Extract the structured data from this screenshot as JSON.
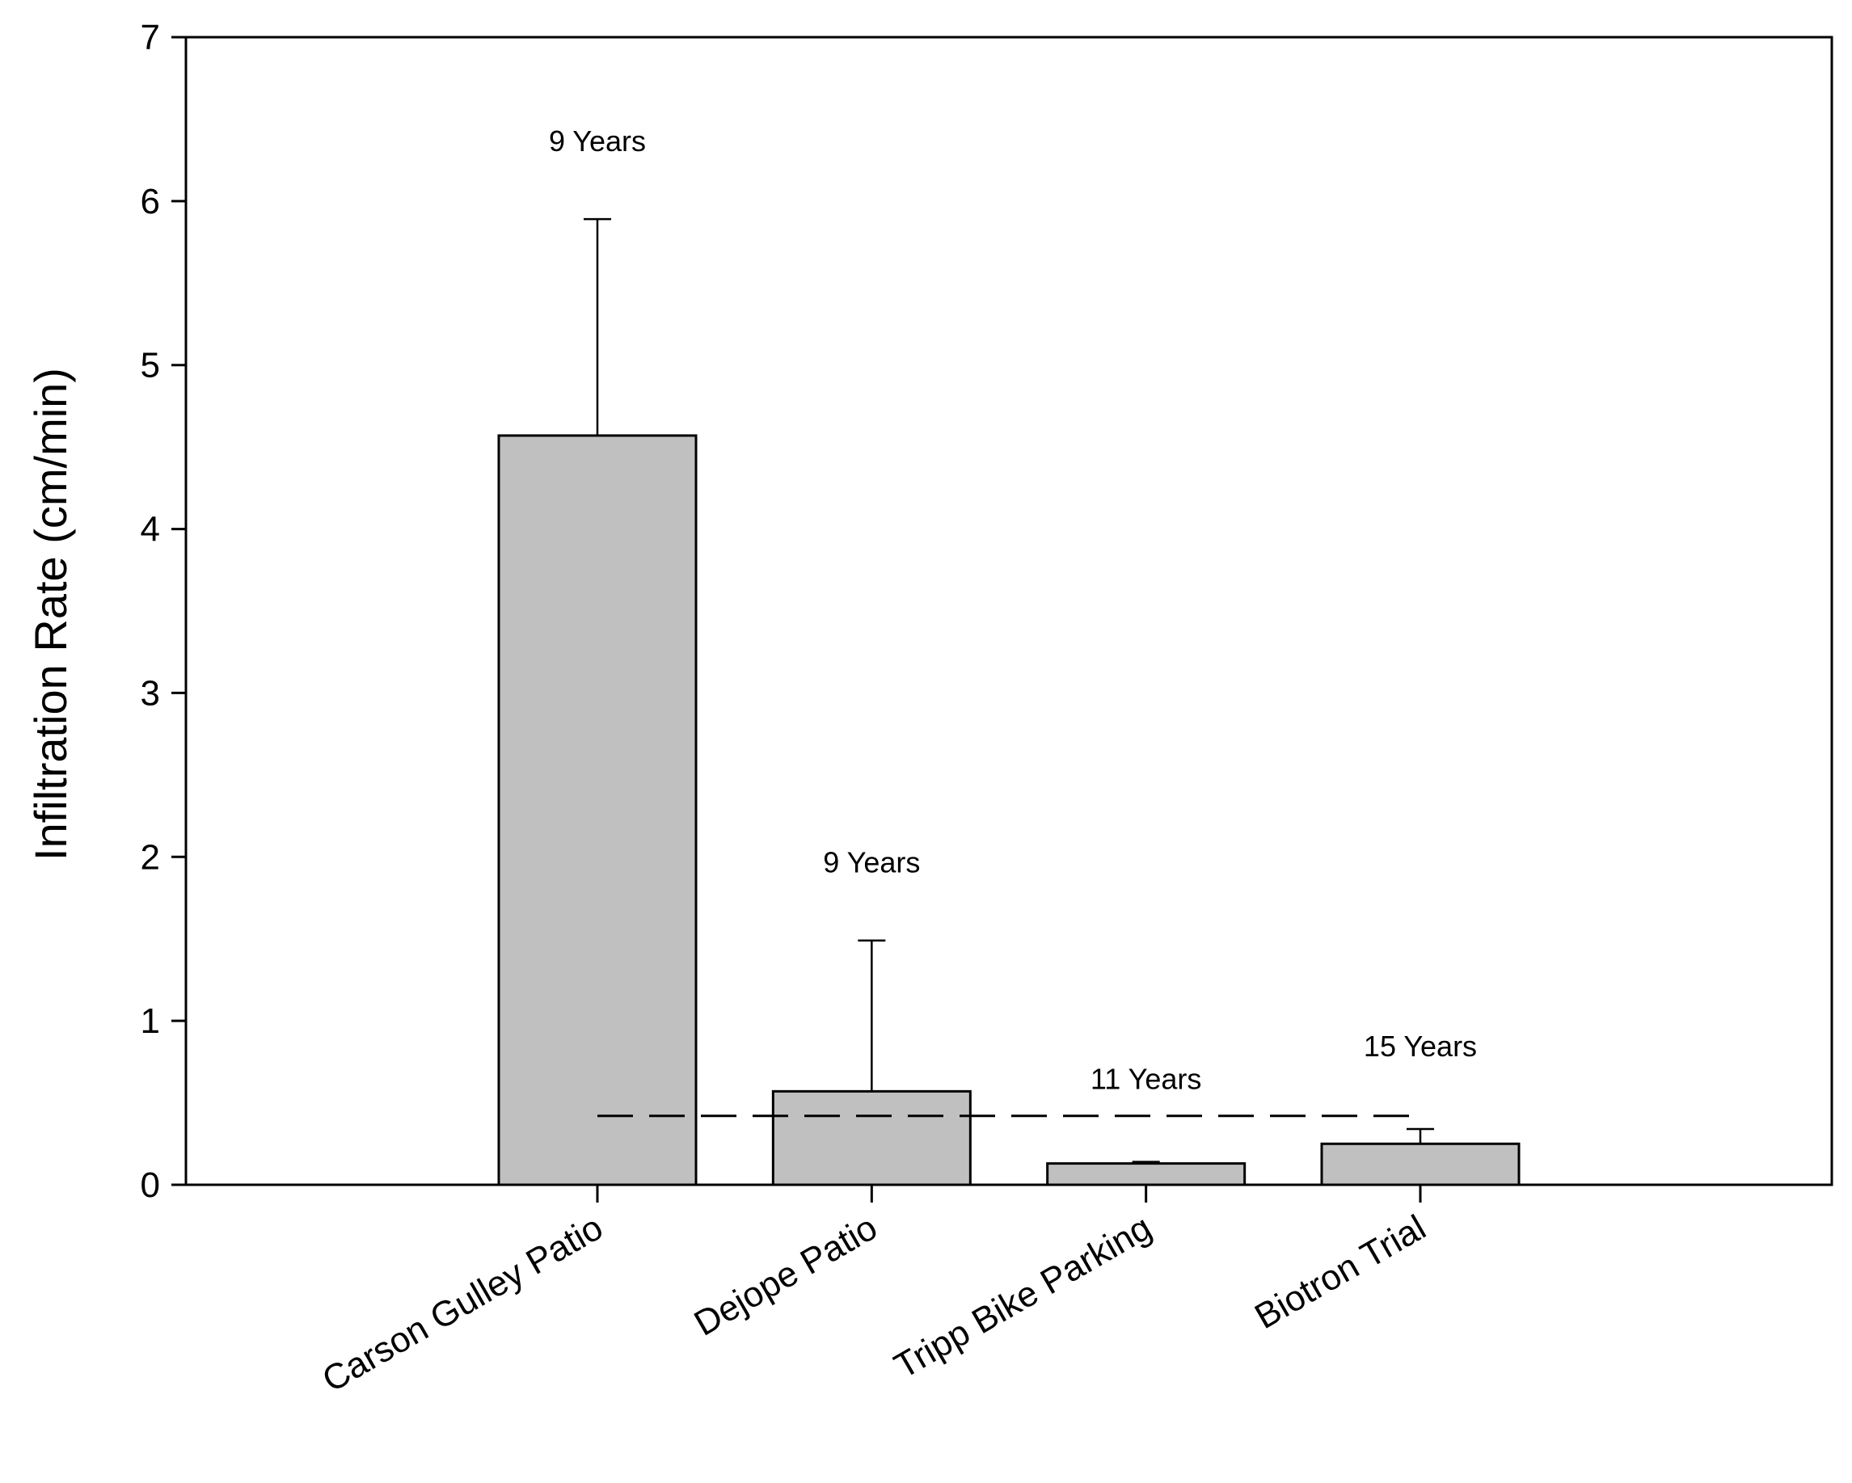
{
  "chart_data": {
    "type": "bar",
    "title": "",
    "xlabel": "",
    "ylabel": "Infiltration Rate (cm/min)",
    "ylim": [
      0,
      7
    ],
    "yticks": [
      "0",
      "1",
      "2",
      "3",
      "4",
      "5",
      "6",
      "7"
    ],
    "categories": [
      "Carson Gulley Patio",
      "Dejope Patio",
      "Tripp Bike Parking",
      "Biotron Trial"
    ],
    "values": [
      4.57,
      0.57,
      0.13,
      0.25
    ],
    "error_upper": [
      5.89,
      1.49,
      0.14,
      0.34
    ],
    "annotations": [
      "9 Years",
      "9 Years",
      "11 Years",
      "15 Years"
    ],
    "reference_line": {
      "value": 0.42,
      "style": "dashed"
    },
    "bar_color": "#c0c0c0",
    "edge_color": "#000000",
    "grid": false,
    "legend": "none"
  }
}
